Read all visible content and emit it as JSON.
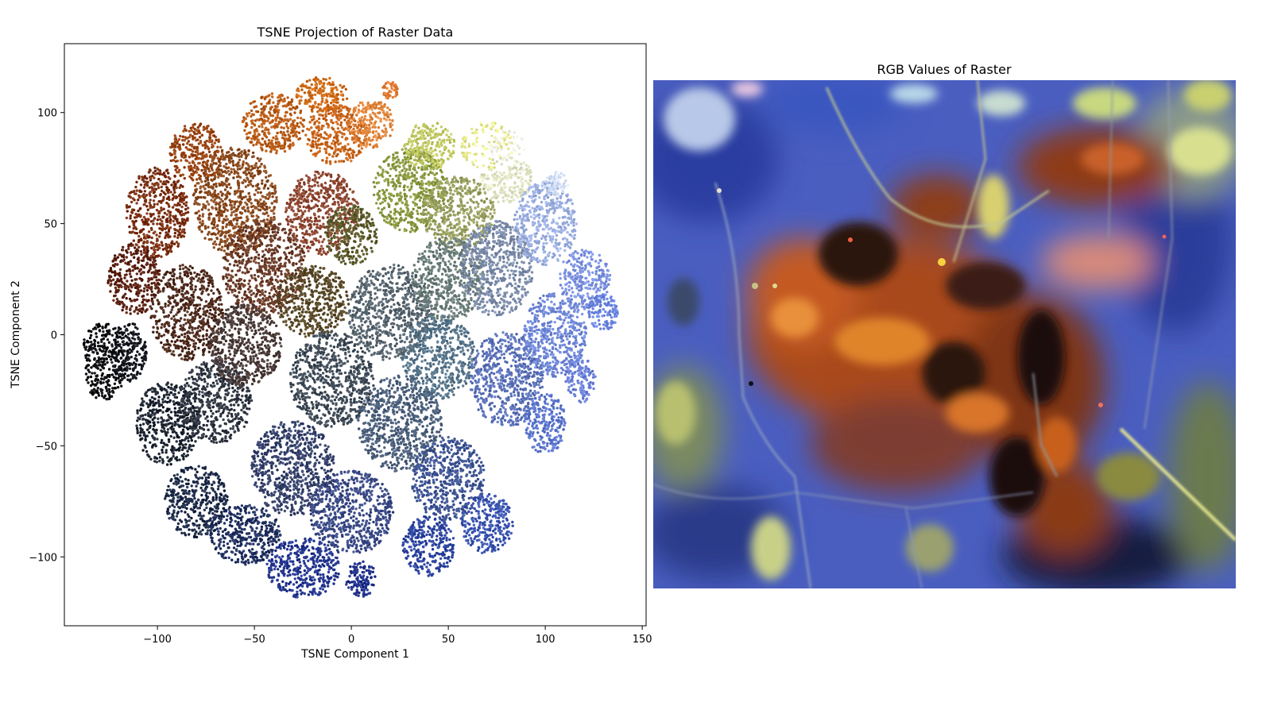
{
  "chart_data": [
    {
      "type": "scatter",
      "title": "TSNE Projection of Raster Data",
      "xlabel": "TSNE Component 1",
      "ylabel": "TSNE Component 2",
      "xlim": [
        -148,
        152
      ],
      "ylim": [
        -131,
        131
      ],
      "xticks": [
        -100,
        -50,
        0,
        50,
        100,
        150
      ],
      "yticks": [
        -100,
        -50,
        0,
        50,
        100
      ],
      "xtick_labels": [
        "−100",
        "−50",
        "0",
        "50",
        "100",
        "150"
      ],
      "ytick_labels": [
        "−100",
        "−50",
        "0",
        "50",
        "100"
      ],
      "grid": false,
      "legend": "none",
      "point_color": "per-point RGB of raster pixel",
      "clusters": [
        {
          "x": -128,
          "y": -12,
          "rx": 9,
          "ry": 13,
          "color": "#0b0b10"
        },
        {
          "x": -115,
          "y": -8,
          "rx": 7,
          "ry": 10,
          "color": "#12141c"
        },
        {
          "x": -112,
          "y": 25,
          "rx": 10,
          "ry": 12,
          "color": "#5a1f10"
        },
        {
          "x": -100,
          "y": 55,
          "rx": 12,
          "ry": 15,
          "color": "#7a2e10"
        },
        {
          "x": -80,
          "y": 82,
          "rx": 10,
          "ry": 10,
          "color": "#9a4412"
        },
        {
          "x": -85,
          "y": 10,
          "rx": 14,
          "ry": 16,
          "color": "#4e2a1c"
        },
        {
          "x": -60,
          "y": 60,
          "rx": 16,
          "ry": 18,
          "color": "#8a4a1e"
        },
        {
          "x": -40,
          "y": 95,
          "rx": 12,
          "ry": 10,
          "color": "#b85a14"
        },
        {
          "x": -15,
          "y": 108,
          "rx": 10,
          "ry": 6,
          "color": "#d06a14"
        },
        {
          "x": -8,
          "y": 90,
          "rx": 12,
          "ry": 10,
          "color": "#c8641a"
        },
        {
          "x": 10,
          "y": 95,
          "rx": 9,
          "ry": 8,
          "color": "#e0843a"
        },
        {
          "x": -45,
          "y": 30,
          "rx": 16,
          "ry": 16,
          "color": "#6a3a26"
        },
        {
          "x": -15,
          "y": 55,
          "rx": 14,
          "ry": 14,
          "color": "#8e4630"
        },
        {
          "x": -20,
          "y": 15,
          "rx": 14,
          "ry": 12,
          "color": "#5a4a28"
        },
        {
          "x": 0,
          "y": 45,
          "rx": 10,
          "ry": 10,
          "color": "#5c5a2a"
        },
        {
          "x": -95,
          "y": -40,
          "rx": 12,
          "ry": 14,
          "color": "#1c2430"
        },
        {
          "x": -70,
          "y": -30,
          "rx": 14,
          "ry": 14,
          "color": "#2e3440"
        },
        {
          "x": -55,
          "y": -5,
          "rx": 14,
          "ry": 14,
          "color": "#4a3a38"
        },
        {
          "x": -80,
          "y": -75,
          "rx": 12,
          "ry": 12,
          "color": "#1c2a48"
        },
        {
          "x": -55,
          "y": -90,
          "rx": 14,
          "ry": 10,
          "color": "#203060"
        },
        {
          "x": -30,
          "y": -60,
          "rx": 16,
          "ry": 16,
          "color": "#34406a"
        },
        {
          "x": -25,
          "y": -105,
          "rx": 14,
          "ry": 10,
          "color": "#243690"
        },
        {
          "x": -10,
          "y": -20,
          "rx": 16,
          "ry": 16,
          "color": "#3e4a56"
        },
        {
          "x": 0,
          "y": -80,
          "rx": 16,
          "ry": 14,
          "color": "#3a4a86"
        },
        {
          "x": 5,
          "y": -110,
          "rx": 6,
          "ry": 6,
          "color": "#20308a"
        },
        {
          "x": 20,
          "y": 10,
          "rx": 16,
          "ry": 16,
          "color": "#56646e"
        },
        {
          "x": 25,
          "y": -40,
          "rx": 16,
          "ry": 16,
          "color": "#4a5e7a"
        },
        {
          "x": 30,
          "y": 65,
          "rx": 14,
          "ry": 14,
          "color": "#8a9a40"
        },
        {
          "x": 40,
          "y": 85,
          "rx": 10,
          "ry": 8,
          "color": "#c0c860"
        },
        {
          "x": 55,
          "y": 55,
          "rx": 14,
          "ry": 12,
          "color": "#9aa060"
        },
        {
          "x": 70,
          "y": 85,
          "rx": 10,
          "ry": 8,
          "color": "#e6e88e"
        },
        {
          "x": 80,
          "y": 70,
          "rx": 10,
          "ry": 8,
          "color": "#dfe2c0"
        },
        {
          "x": 50,
          "y": 25,
          "rx": 14,
          "ry": 14,
          "color": "#6a7c78"
        },
        {
          "x": 45,
          "y": -10,
          "rx": 14,
          "ry": 14,
          "color": "#547288"
        },
        {
          "x": 50,
          "y": -65,
          "rx": 14,
          "ry": 14,
          "color": "#3e5494"
        },
        {
          "x": 40,
          "y": -95,
          "rx": 10,
          "ry": 10,
          "color": "#2c44a0"
        },
        {
          "x": 70,
          "y": -85,
          "rx": 10,
          "ry": 10,
          "color": "#3a54b0"
        },
        {
          "x": 75,
          "y": 30,
          "rx": 14,
          "ry": 16,
          "color": "#7a8aa8"
        },
        {
          "x": 80,
          "y": -20,
          "rx": 14,
          "ry": 16,
          "color": "#5a70b8"
        },
        {
          "x": 100,
          "y": 50,
          "rx": 12,
          "ry": 14,
          "color": "#9aaee0"
        },
        {
          "x": 105,
          "y": 0,
          "rx": 12,
          "ry": 14,
          "color": "#7088d8"
        },
        {
          "x": 100,
          "y": -40,
          "rx": 8,
          "ry": 10,
          "color": "#5a74cc"
        },
        {
          "x": 120,
          "y": 25,
          "rx": 10,
          "ry": 10,
          "color": "#7a90e0"
        },
        {
          "x": 130,
          "y": 10,
          "rx": 6,
          "ry": 6,
          "color": "#6a84e0"
        },
        {
          "x": 118,
          "y": -20,
          "rx": 6,
          "ry": 8,
          "color": "#6a80d8"
        },
        {
          "x": 20,
          "y": 110,
          "rx": 3,
          "ry": 3,
          "color": "#e07a30"
        },
        {
          "x": 80,
          "y": 85,
          "rx": 7,
          "ry": 5,
          "color": "#f4f4e8"
        },
        {
          "x": 105,
          "y": 68,
          "rx": 5,
          "ry": 4,
          "color": "#cfdcf4"
        }
      ]
    },
    {
      "type": "heatmap",
      "title": "RGB Values of Raster",
      "axes": "off",
      "palette": {
        "background_blue": "#4a5ec0",
        "dark_blue": "#1a2a6a",
        "burn_orange": "#c8541c",
        "burn_dark": "#3a1a12",
        "vegetation_yellow": "#c8d070",
        "light_patch": "#b8c8e8",
        "road": "#9aa8c0"
      }
    }
  ]
}
